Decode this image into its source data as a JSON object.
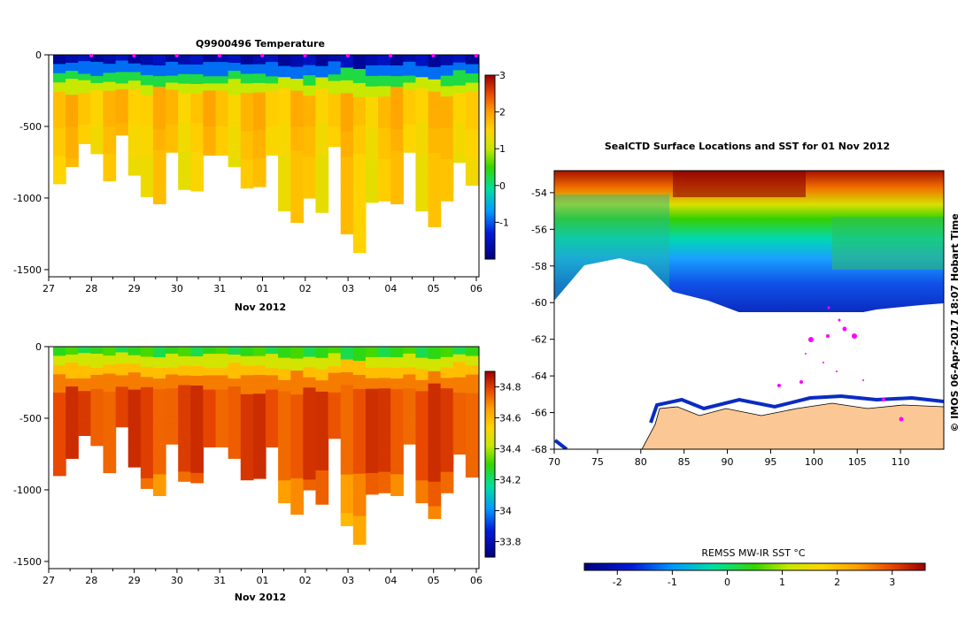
{
  "chart_data": [
    {
      "type": "heatmap",
      "title": "Q9900496  Temperature",
      "xlabel": "Nov 2012",
      "x_tick_labels": [
        "27",
        "28",
        "29",
        "30",
        "31",
        "01",
        "02",
        "03",
        "04",
        "05",
        "06"
      ],
      "y_tick_labels": [
        "0",
        "-500",
        "-1000",
        "-1500"
      ],
      "ylim": [
        -1550,
        0
      ],
      "colorbar_ticks": [
        "3",
        "2",
        "1",
        "0",
        "-1"
      ],
      "colorbar_range": [
        -2,
        3
      ],
      "profile_depths_m": [
        900,
        780,
        620,
        690,
        880,
        560,
        840,
        990,
        1040,
        680,
        940,
        950,
        700,
        700,
        780,
        930,
        920,
        700,
        1090,
        1170,
        1000,
        1100,
        640,
        1250,
        1380,
        1030,
        1020,
        1040,
        680,
        1090,
        1200,
        1020,
        750,
        910
      ]
    },
    {
      "type": "heatmap",
      "title": "",
      "xlabel": "Nov 2012",
      "x_tick_labels": [
        "27",
        "28",
        "29",
        "30",
        "31",
        "01",
        "02",
        "03",
        "04",
        "05",
        "06"
      ],
      "y_tick_labels": [
        "0",
        "-500",
        "-1000",
        "-1500"
      ],
      "ylim": [
        -1550,
        0
      ],
      "colorbar_ticks": [
        "34.8",
        "34.6",
        "34.4",
        "34.2",
        "34",
        "33.8"
      ],
      "colorbar_range": [
        33.7,
        34.9
      ],
      "profile_depths_m": [
        900,
        780,
        620,
        690,
        880,
        560,
        840,
        990,
        1040,
        680,
        940,
        950,
        700,
        700,
        780,
        930,
        920,
        700,
        1090,
        1170,
        1000,
        1100,
        640,
        1250,
        1380,
        1030,
        1020,
        1040,
        680,
        1090,
        1200,
        1020,
        750,
        910
      ]
    },
    {
      "type": "heatmap",
      "title": "SealCTD Surface Locations and SST for 01 Nov 2012",
      "x_tick_labels": [
        "70",
        "75",
        "80",
        "85",
        "90",
        "95",
        "100",
        "105",
        "110"
      ],
      "y_tick_labels": [
        "-54",
        "-56",
        "-58",
        "-60",
        "-62",
        "-64",
        "-66",
        "-68"
      ],
      "xlim": [
        70,
        115
      ],
      "ylim": [
        -68,
        -52.8
      ],
      "side_label": "© IMOS 06-Apr-2017 18:07 Hobart Time",
      "colorbar_label": "REMSS MW-IR SST °C",
      "colorbar_ticks": [
        "-2",
        "-1",
        "0",
        "1",
        "2",
        "3"
      ],
      "colorbar_range": [
        -2.6,
        3.6
      ]
    }
  ]
}
